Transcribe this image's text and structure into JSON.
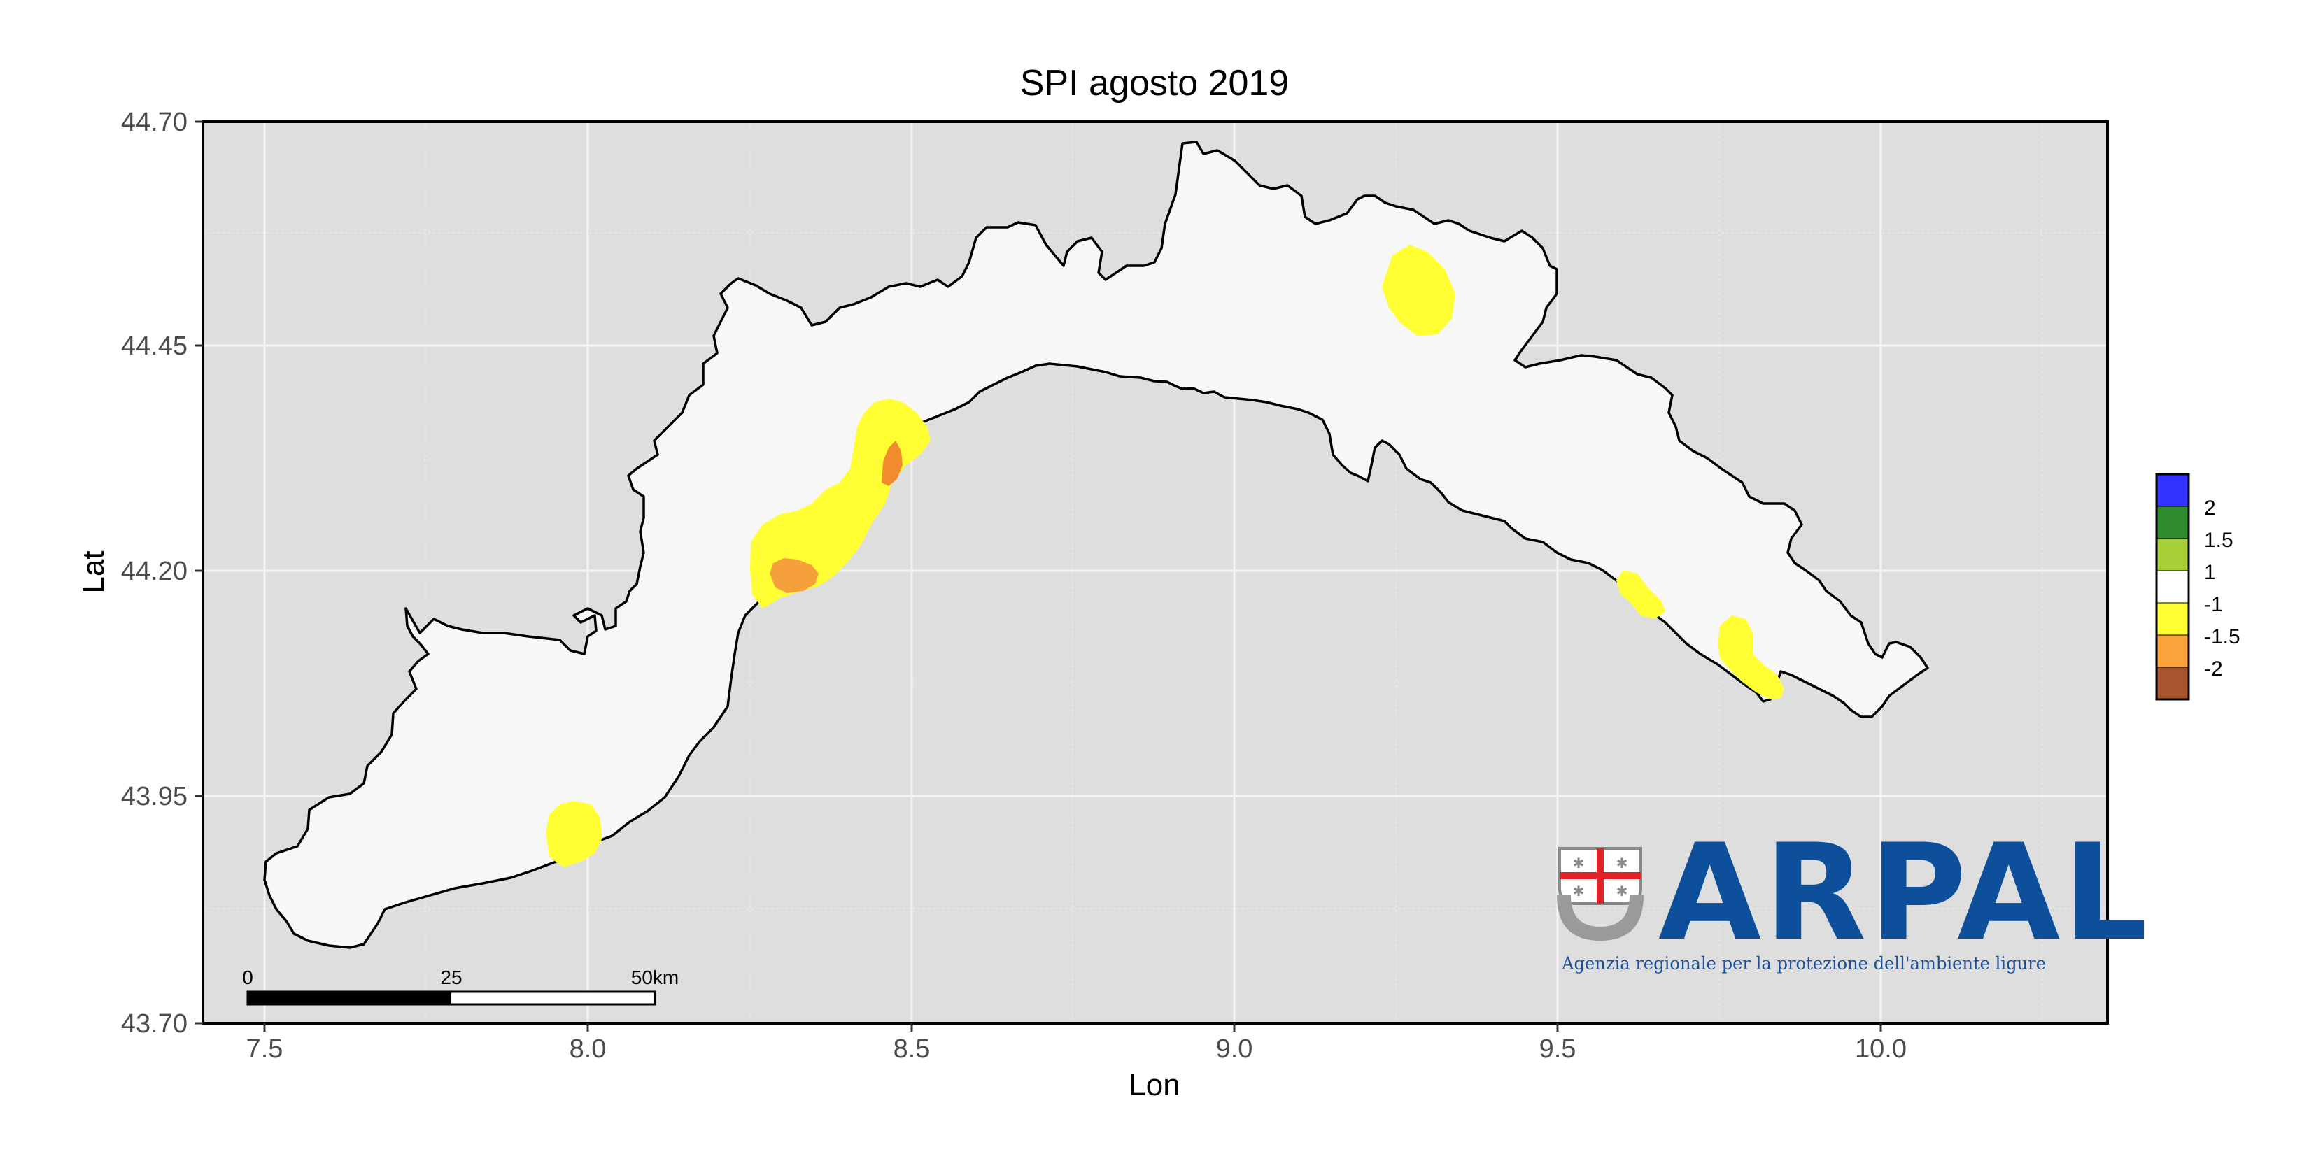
{
  "title": "SPI agosto 2019",
  "x_axis": {
    "label": "Lon",
    "ticks": [
      "7.5",
      "8.0",
      "8.5",
      "9.0",
      "9.5",
      "10.0"
    ]
  },
  "y_axis": {
    "label": "Lat",
    "ticks": [
      "43.70",
      "43.95",
      "44.20",
      "44.45",
      "44.70"
    ]
  },
  "legend": {
    "items": [
      {
        "color": "#3333ff",
        "label": "2"
      },
      {
        "color": "#2e8b2e",
        "label": "1.5"
      },
      {
        "color": "#a6ce39",
        "label": "1"
      },
      {
        "color": "#ffffff",
        "label": "-1"
      },
      {
        "color": "#ffff33",
        "label": "-1.5"
      },
      {
        "color": "#f9a33a",
        "label": "-2"
      },
      {
        "color": "#a9542e",
        "label": ""
      }
    ]
  },
  "scale_bar": {
    "labels": [
      "0",
      "25",
      "50km"
    ]
  },
  "logo": {
    "name": "ARPAL",
    "tagline": "Agenzia regionale per la protezione dell'ambiente ligure"
  },
  "colors": {
    "panel_bg": "#dedede",
    "land": "#f7f7f7",
    "spi_dry": "#ffff33",
    "spi_very_dry": "#f5a03a",
    "spi_extreme": "#d9752a",
    "brand_blue": "#0d4f9a",
    "cross_red": "#e0242a"
  }
}
